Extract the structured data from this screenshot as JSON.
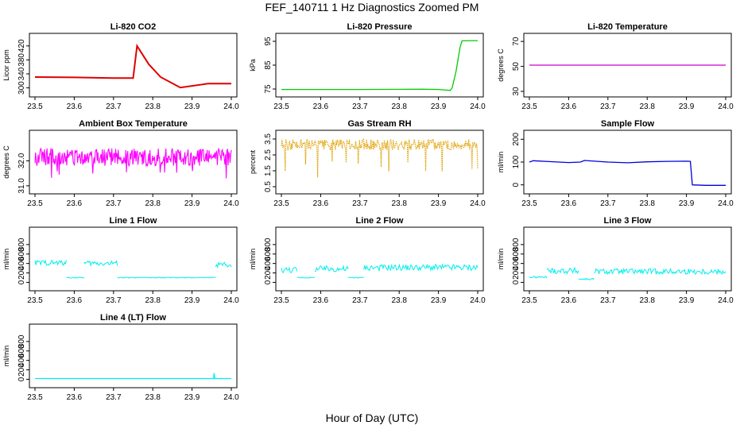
{
  "figure": {
    "title": "FEF_140711  1 Hz Diagnostics Zoomed PM",
    "xlabel": "Hour of Day (UTC)"
  },
  "chart_data": [
    {
      "type": "line",
      "title": "Li-820 CO2",
      "ylabel": "Licor ppm",
      "color": "#e00000",
      "xlim": [
        23.5,
        24.0
      ],
      "ylim": [
        290,
        440
      ],
      "xticks": [
        "23.5",
        "23.6",
        "23.7",
        "23.8",
        "23.9",
        "24.0"
      ],
      "yticks": [
        "300",
        "340",
        "380",
        "420"
      ],
      "style": "step",
      "series": [
        {
          "x": [
            23.5,
            23.6,
            23.7,
            23.75,
            23.76,
            23.76,
            23.79,
            23.79,
            23.82,
            23.82,
            23.87,
            23.87,
            23.94,
            23.94,
            24.0
          ],
          "y": [
            331,
            330,
            328,
            328,
            420,
            420,
            367,
            367,
            331,
            331,
            301,
            301,
            312,
            312,
            312
          ]
        }
      ]
    },
    {
      "type": "line",
      "title": "Li-820 Pressure",
      "ylabel": "kPa",
      "color": "#00cc00",
      "xlim": [
        23.5,
        24.0
      ],
      "ylim": [
        74,
        96
      ],
      "xticks": [
        "23.5",
        "23.6",
        "23.7",
        "23.8",
        "23.9",
        "24.0"
      ],
      "yticks": [
        "75",
        "85",
        "95"
      ],
      "style": "line",
      "series": [
        {
          "x": [
            23.5,
            23.7,
            23.86,
            23.9,
            23.93,
            23.935,
            23.945,
            23.955,
            23.96,
            24.0
          ],
          "y": [
            74.8,
            74.8,
            74.9,
            74.8,
            74.4,
            75.5,
            82.5,
            92.5,
            95.2,
            95.3
          ]
        }
      ]
    },
    {
      "type": "line",
      "title": "Li-820 Temperature",
      "ylabel": "degrees C",
      "color": "#cc00cc",
      "xlim": [
        23.5,
        24.0
      ],
      "ylim": [
        30,
        72
      ],
      "xticks": [
        "23.5",
        "23.6",
        "23.7",
        "23.8",
        "23.9",
        "24.0"
      ],
      "yticks": [
        "30",
        "50",
        "70"
      ],
      "style": "line",
      "series": [
        {
          "x": [
            23.5,
            24.0
          ],
          "y": [
            51,
            51
          ]
        }
      ]
    },
    {
      "type": "line",
      "title": "Ambient Box Temperature",
      "ylabel": "degrees C",
      "color": "#ff00ff",
      "xlim": [
        23.5,
        24.0
      ],
      "ylim": [
        30.9,
        33.0
      ],
      "xticks": [
        "23.5",
        "23.6",
        "23.7",
        "23.8",
        "23.9",
        "24.0"
      ],
      "yticks": [
        "31.0",
        "32.0"
      ],
      "style": "noise",
      "series": [
        {
          "baseline": 32.1,
          "low": 31.8,
          "high": 32.5,
          "spikes_down": [
            31.1,
            31.0,
            31.2,
            31.3,
            31.4,
            31.5
          ]
        }
      ]
    },
    {
      "type": "line",
      "title": "Gas Stream RH",
      "ylabel": "percent",
      "color": "#e0a000",
      "xlim": [
        23.5,
        24.0
      ],
      "ylim": [
        0.4,
        3.7
      ],
      "xticks": [
        "23.5",
        "23.6",
        "23.7",
        "23.8",
        "23.9",
        "24.0"
      ],
      "yticks": [
        "0.5",
        "1.5",
        "2.5",
        "3.5"
      ],
      "style": "noise",
      "series": [
        {
          "baseline": 3.15,
          "low": 2.8,
          "high": 3.5,
          "spikes_down": [
            0.5,
            0.6,
            0.9,
            1.0,
            1.3,
            1.5
          ]
        }
      ]
    },
    {
      "type": "line",
      "title": "Sample Flow",
      "ylabel": "ml/min",
      "color": "#0000dd",
      "xlim": [
        23.5,
        24.0
      ],
      "ylim": [
        -15,
        215
      ],
      "xticks": [
        "23.5",
        "23.6",
        "23.7",
        "23.8",
        "23.9",
        "24.0"
      ],
      "yticks": [
        "0",
        "100",
        "200"
      ],
      "style": "line",
      "series": [
        {
          "x": [
            23.5,
            23.51,
            23.55,
            23.6,
            23.63,
            23.64,
            23.7,
            23.75,
            23.8,
            23.85,
            23.9,
            23.91,
            23.915,
            23.95,
            24.0
          ],
          "y": [
            100,
            106,
            102,
            98,
            100,
            107,
            100,
            97,
            101,
            103,
            104,
            103,
            0,
            -2,
            -2
          ]
        }
      ]
    },
    {
      "type": "line",
      "title": "Line 1 Flow",
      "ylabel": "ml/min",
      "color": "#00eeee",
      "xlim": [
        23.5,
        24.0
      ],
      "ylim": [
        -60,
        1050
      ],
      "xticks": [
        "23.5",
        "23.6",
        "23.7",
        "23.8",
        "23.9",
        "24.0"
      ],
      "yticks": [
        "0",
        "200",
        "400",
        "600",
        "800"
      ],
      "style": "band",
      "series": [
        {
          "segments": [
            [
              23.5,
              23.58,
              360,
              470
            ],
            [
              23.58,
              23.625,
              90,
              110
            ],
            [
              23.625,
              23.71,
              350,
              460
            ],
            [
              23.71,
              23.96,
              90,
              110
            ],
            [
              23.96,
              24.0,
              320,
              430
            ]
          ]
        }
      ]
    },
    {
      "type": "line",
      "title": "Line 2 Flow",
      "ylabel": "ml/min",
      "color": "#00eeee",
      "xlim": [
        23.5,
        24.0
      ],
      "ylim": [
        -60,
        1050
      ],
      "xticks": [
        "23.5",
        "23.6",
        "23.7",
        "23.8",
        "23.9",
        "24.0"
      ],
      "yticks": [
        "0",
        "200",
        "400",
        "600",
        "800"
      ],
      "style": "band",
      "series": [
        {
          "segments": [
            [
              23.5,
              23.54,
              200,
              330
            ],
            [
              23.54,
              23.585,
              90,
              110
            ],
            [
              23.585,
              23.67,
              220,
              350
            ],
            [
              23.67,
              23.71,
              90,
              110
            ],
            [
              23.71,
              24.0,
              250,
              380
            ]
          ]
        }
      ]
    },
    {
      "type": "line",
      "title": "Line 3 Flow",
      "ylabel": "ml/min",
      "color": "#00eeee",
      "xlim": [
        23.5,
        24.0
      ],
      "ylim": [
        -60,
        1050
      ],
      "xticks": [
        "23.5",
        "23.6",
        "23.7",
        "23.8",
        "23.9",
        "24.0"
      ],
      "yticks": [
        "0",
        "200",
        "400",
        "600",
        "800"
      ],
      "style": "band",
      "series": [
        {
          "segments": [
            [
              23.5,
              23.545,
              90,
              130
            ],
            [
              23.545,
              23.625,
              180,
              310
            ],
            [
              23.625,
              23.665,
              50,
              90
            ],
            [
              23.665,
              24.0,
              170,
              290
            ]
          ]
        }
      ]
    },
    {
      "type": "line",
      "title": "Line 4 (LT) Flow",
      "ylabel": "ml/min",
      "color": "#00eeee",
      "xlim": [
        23.5,
        24.0
      ],
      "ylim": [
        -60,
        1050
      ],
      "xticks": [
        "23.5",
        "23.6",
        "23.7",
        "23.8",
        "23.9",
        "24.0"
      ],
      "yticks": [
        "0",
        "200",
        "400",
        "600",
        "800"
      ],
      "style": "line",
      "series": [
        {
          "x": [
            23.5,
            23.955,
            23.956,
            23.958,
            23.96,
            24.0
          ],
          "y": [
            15,
            15,
            130,
            15,
            15,
            15
          ]
        }
      ]
    }
  ]
}
